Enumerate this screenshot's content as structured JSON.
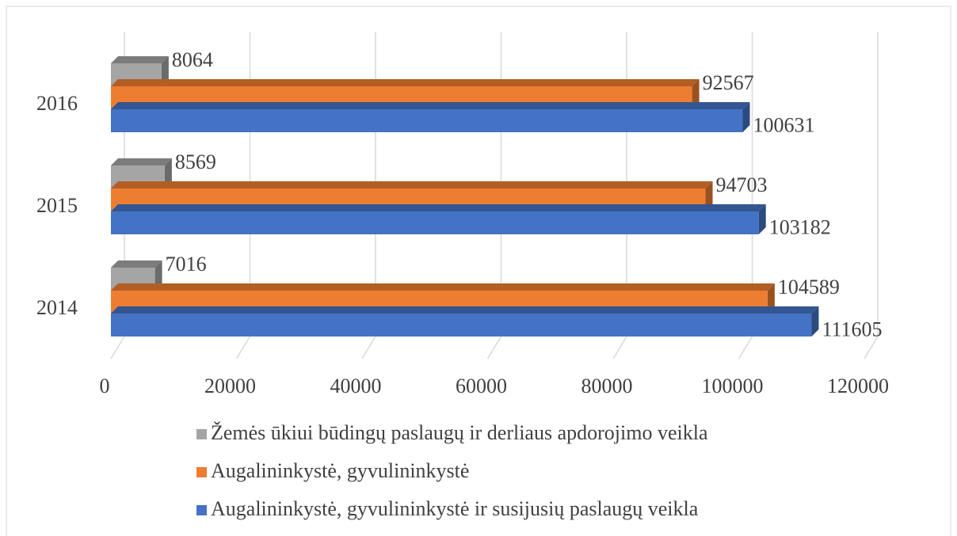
{
  "chart_data": {
    "type": "bar",
    "orientation": "horizontal",
    "categories": [
      "2014",
      "2015",
      "2016"
    ],
    "series": [
      {
        "name": "Žemės ūkiui būdingų paslaugų ir derliaus apdorojimo veikla",
        "color": "#a5a5a5",
        "values": [
          7016,
          8569,
          8064
        ]
      },
      {
        "name": "Augalininkystė, gyvulininkystė",
        "color": "#ed7d31",
        "values": [
          104589,
          94703,
          92567
        ]
      },
      {
        "name": "Augalininkystė, gyvulininkystė ir susijusių paslaugų veikla",
        "color": "#4472c4",
        "values": [
          111605,
          103182,
          100631
        ]
      }
    ],
    "xlim": [
      0,
      120000
    ],
    "xticks": [
      0,
      20000,
      40000,
      60000,
      80000,
      100000,
      120000
    ],
    "grid": true,
    "legend": "bottom"
  }
}
